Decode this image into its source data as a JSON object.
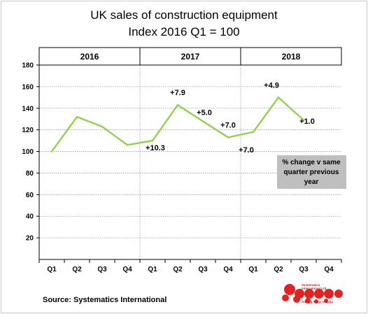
{
  "chart_data": {
    "type": "line",
    "title": "UK sales of construction equipment",
    "subtitle": "Index 2016 Q1 = 100",
    "year_groups": [
      "2016",
      "2017",
      "2018"
    ],
    "categories": [
      "Q1",
      "Q2",
      "Q3",
      "Q4",
      "Q1",
      "Q2",
      "Q3",
      "Q4",
      "Q1",
      "Q2",
      "Q3",
      "Q4"
    ],
    "values": [
      100,
      132,
      123,
      106,
      110,
      143,
      128,
      113,
      118,
      150,
      129,
      null
    ],
    "ylim": [
      0,
      180
    ],
    "yticks": [
      20,
      40,
      60,
      80,
      100,
      120,
      140,
      160,
      180
    ],
    "grid": true,
    "line_color": "#92d050",
    "annotations": [
      {
        "index": 4,
        "text": "+10.3"
      },
      {
        "index": 5,
        "text": "+7.9"
      },
      {
        "index": 6,
        "text": "+5.0"
      },
      {
        "index": 7,
        "text": "+7.0"
      },
      {
        "index": 8,
        "text": "+7.0"
      },
      {
        "index": 9,
        "text": "+4.9"
      },
      {
        "index": 10,
        "text": "+1.0"
      }
    ],
    "note": [
      "% change v same",
      "quarter previous",
      "year"
    ],
    "source": "Source: Systematics International",
    "logo_lines": [
      "Systematics",
      "International Ltd.",
      "Adding Value to Data"
    ]
  }
}
